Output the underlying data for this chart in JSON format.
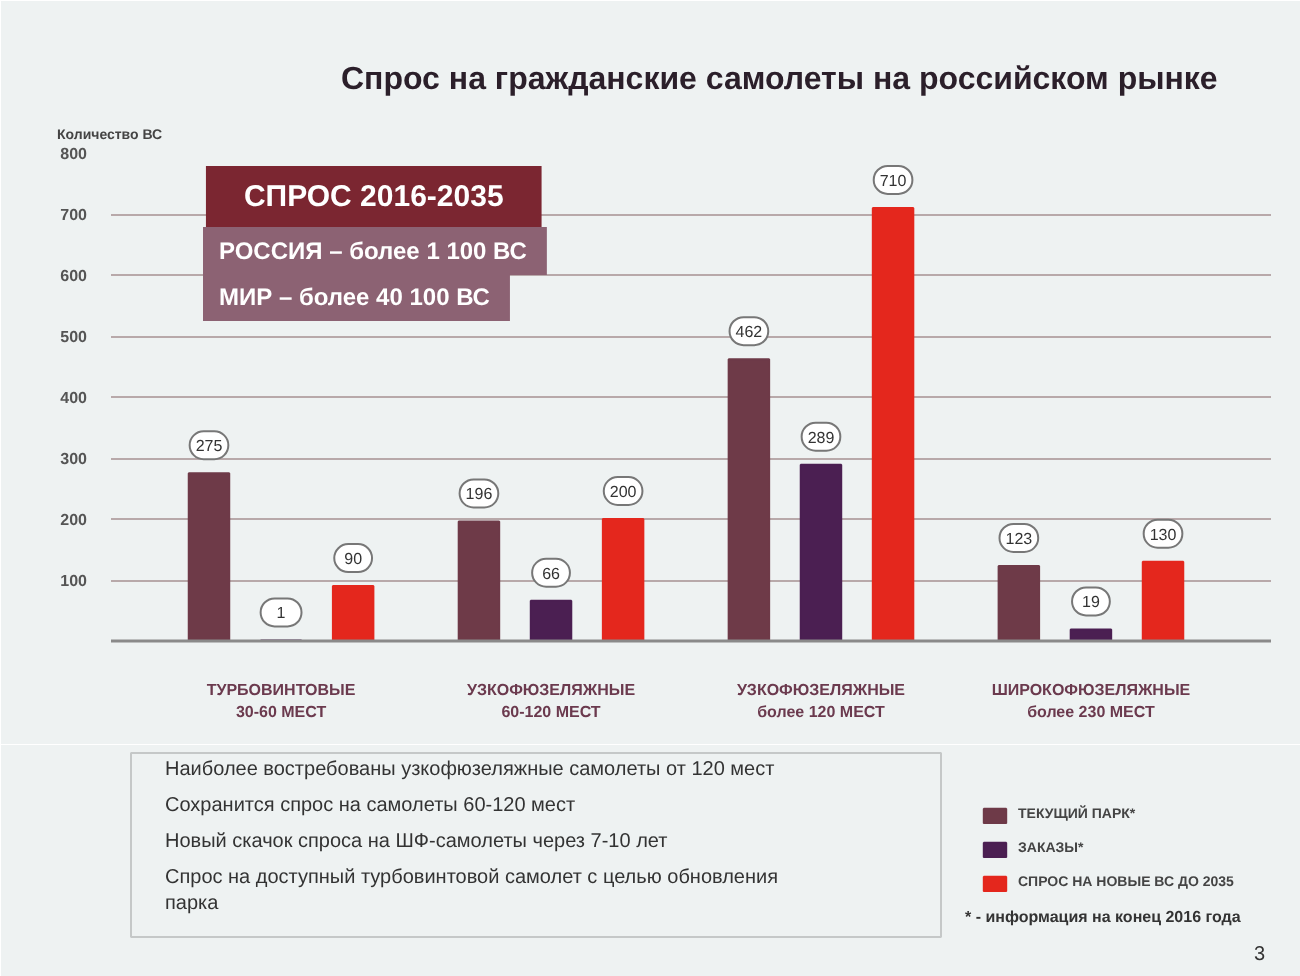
{
  "chart_data": {
    "type": "bar",
    "title": "Спрос на гражданские самолеты на российском рынке",
    "ylabel": "Количество ВС",
    "categories": [
      "ТУРБОВИНТОВЫЕ 30-60 МЕСТ",
      "УЗКОФЮЗЕЛЯЖНЫЕ 60-120 МЕСТ",
      "УЗКОФЮЗЕЛЯЖНЫЕ более 120 МЕСТ",
      "ШИРОКОФЮЗЕЛЯЖНЫЕ более 230 МЕСТ"
    ],
    "series": [
      {
        "name": "ТЕКУЩИЙ ПАРК*",
        "color": "#6e3a48",
        "values": [
          275,
          196,
          462,
          123
        ]
      },
      {
        "name": "ЗАКАЗЫ*",
        "color": "#4b1f52",
        "values": [
          1,
          66,
          289,
          19
        ]
      },
      {
        "name": "СПРОС НА НОВЫЕ ВС ДО 2035",
        "color": "#e4271d",
        "values": [
          90,
          200,
          710,
          130
        ]
      }
    ],
    "ylim": [
      0,
      800
    ],
    "yticks": [
      100,
      200,
      300,
      400,
      500,
      600,
      700,
      800
    ],
    "grid": "y",
    "legend": "bottom right",
    "data_labels": true,
    "annotations": [
      "СПРОС 2016-2035",
      "РОССИЯ – более 1 100 ВС",
      "МИР – более 40 100 ВС",
      "Наиболее востребованы узкофюзеляжные самолеты от 120 мест",
      "Сохранится спрос на самолеты 60-120 мест",
      "Новый скачок спроса на ШФ-самолеты через 7-10 лет",
      "Спрос на доступный турбовинтовой самолет с целью обновления парка",
      "* - информация на конец 2016 года",
      "3"
    ]
  }
}
